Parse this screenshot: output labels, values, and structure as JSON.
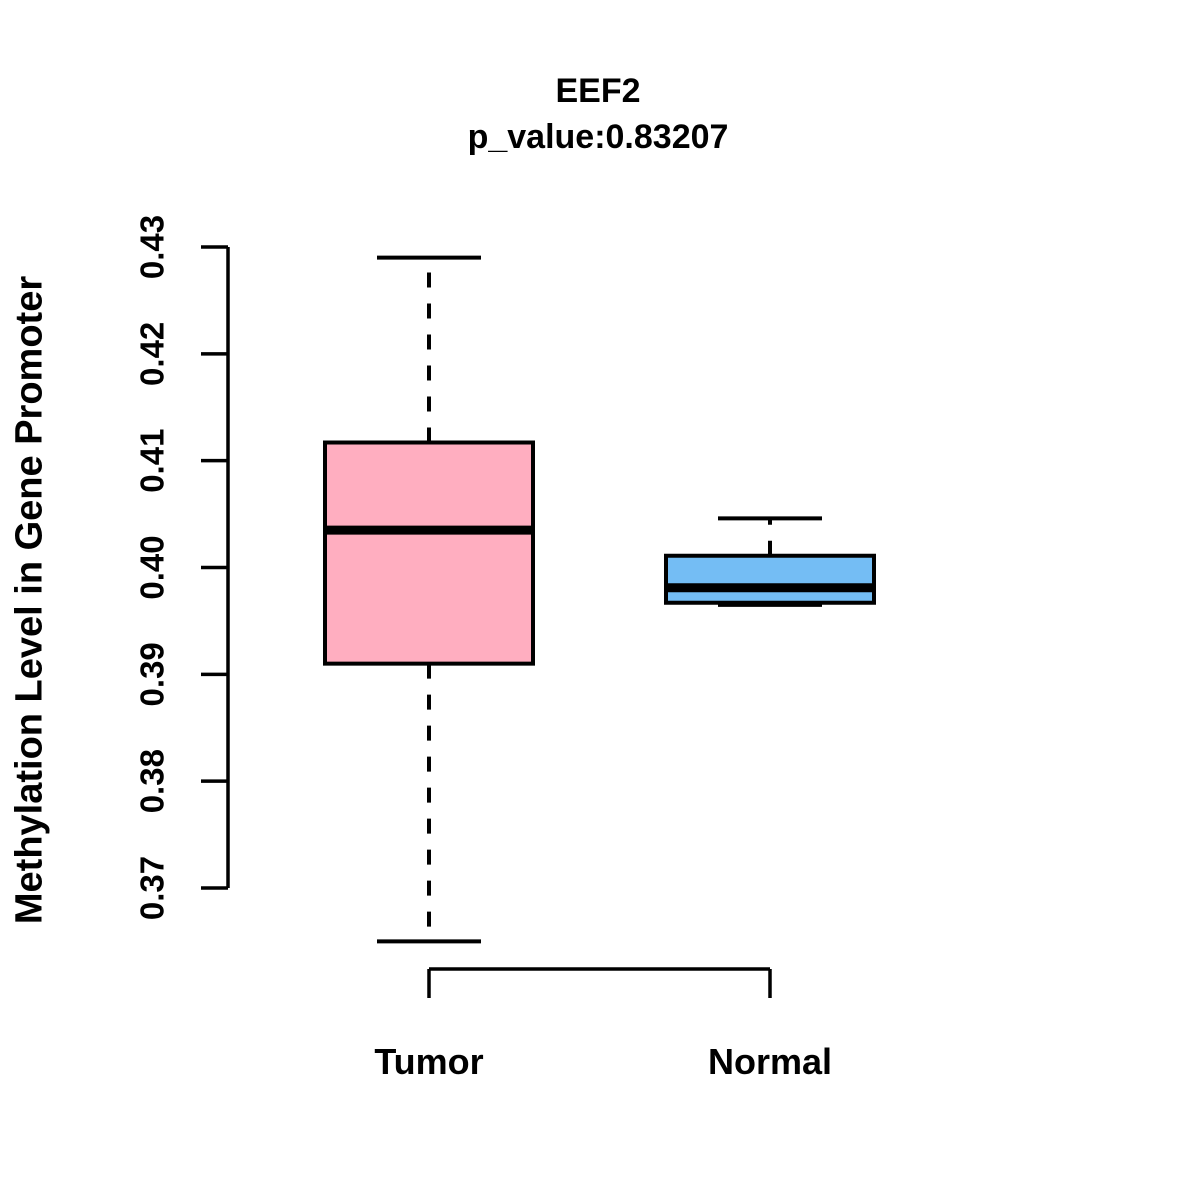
{
  "chart": {
    "title": "EEF2",
    "subtitle": "p_value:0.83207",
    "ylabel": "Methylation Level in Gene Promoter"
  },
  "chart_data": {
    "type": "boxplot",
    "title": "EEF2",
    "subtitle": "p_value:0.83207",
    "xlabel": "",
    "ylabel": "Methylation Level in Gene Promoter",
    "categories": [
      "Tumor",
      "Normal"
    ],
    "y_ticks": [
      0.37,
      0.38,
      0.39,
      0.4,
      0.41,
      0.42,
      0.43
    ],
    "y_axis_range": [
      0.37,
      0.43
    ],
    "grid": false,
    "legend": "none",
    "colors": {
      "line": "#000000",
      "tumor_fill": "#FFAEC0",
      "normal_fill": "#74BDF4"
    },
    "series": [
      {
        "name": "Tumor",
        "fill_color": "#FFAEC0",
        "stats": {
          "whisker_low": 0.365,
          "q1": 0.391,
          "median": 0.4035,
          "q3": 0.4117,
          "whisker_high": 0.429
        }
      },
      {
        "name": "Normal",
        "fill_color": "#74BDF4",
        "stats": {
          "whisker_low": 0.3965,
          "q1": 0.3967,
          "median": 0.3981,
          "q3": 0.4011,
          "whisker_high": 0.4046
        }
      }
    ]
  }
}
